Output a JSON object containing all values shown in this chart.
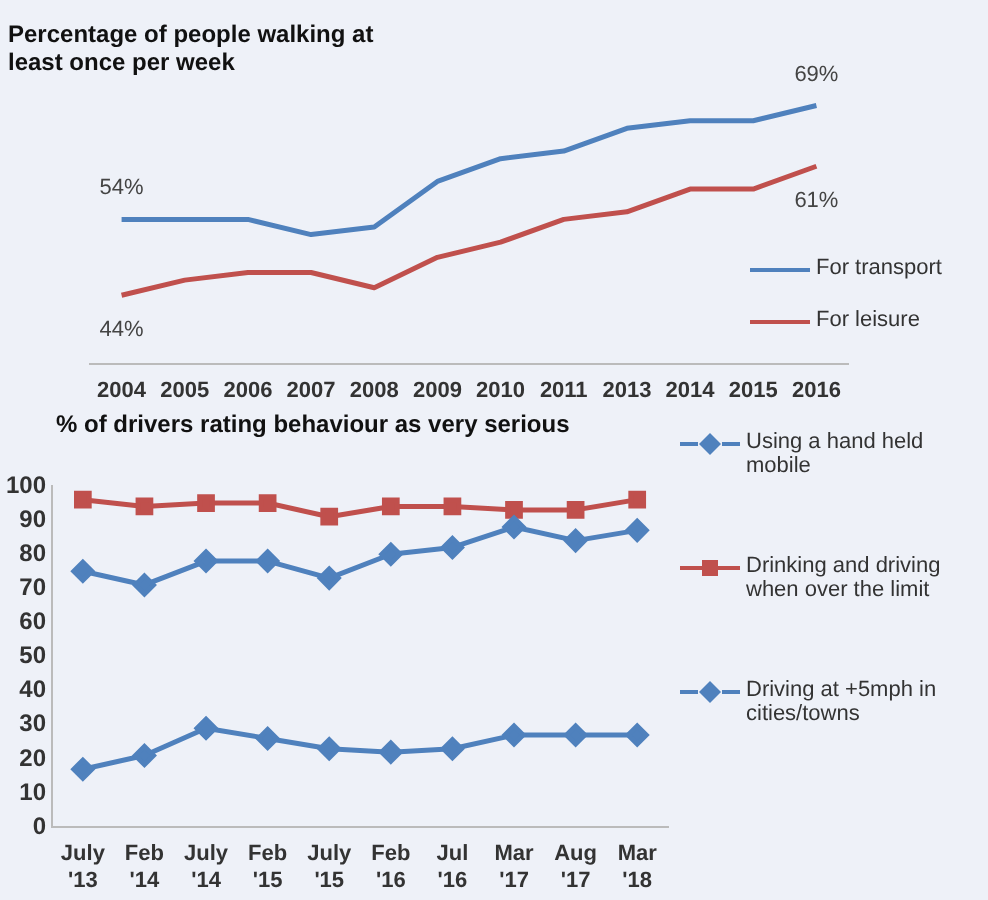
{
  "chart_data": [
    {
      "type": "line",
      "title": "Percentage of people walking at least once per week",
      "categories": [
        "2004",
        "2005",
        "2006",
        "2007",
        "2008",
        "2009",
        "2010",
        "2011",
        "2013",
        "2014",
        "2015",
        "2016"
      ],
      "series": [
        {
          "name": "For transport",
          "color": "#4f81bd",
          "values": [
            54,
            54,
            54,
            52,
            53,
            59,
            62,
            63,
            66,
            67,
            67,
            69
          ],
          "value_labels": [
            "54%",
            null,
            null,
            null,
            null,
            null,
            null,
            null,
            null,
            null,
            null,
            "69%"
          ]
        },
        {
          "name": "For leisure",
          "color": "#c0504d",
          "values": [
            44,
            46,
            47,
            47,
            45,
            49,
            51,
            54,
            55,
            58,
            58,
            61
          ],
          "value_labels": [
            "44%",
            null,
            null,
            null,
            null,
            null,
            null,
            null,
            null,
            null,
            null,
            "61%"
          ]
        }
      ],
      "tick_labels": "x",
      "grid": false,
      "legend": "right",
      "marker": "none"
    },
    {
      "type": "line",
      "title": "% of drivers rating behaviour as very serious",
      "categories": [
        "July\n'13",
        "Feb\n'14",
        "July\n'14",
        "Feb\n'15",
        "July\n'15",
        "Feb\n'16",
        "Jul\n'16",
        "Mar\n'17",
        "Aug\n'17",
        "Mar\n'18"
      ],
      "series": [
        {
          "name": "Using a hand held mobile",
          "color": "#4f81bd",
          "marker": "diamond",
          "values": [
            75,
            71,
            78,
            78,
            73,
            80,
            82,
            88,
            84,
            87
          ]
        },
        {
          "name": "Drinking and driving when over the limit",
          "color": "#c0504d",
          "marker": "square",
          "values": [
            96,
            94,
            95,
            95,
            91,
            94,
            94,
            93,
            93,
            96
          ]
        },
        {
          "name": "Driving at +5mph in cities/towns",
          "color": "#4f81bd",
          "marker": "diamond",
          "values": [
            17,
            21,
            29,
            26,
            23,
            22,
            23,
            27,
            27,
            27
          ]
        }
      ],
      "ylim": [
        0,
        100
      ],
      "yticks": [
        0,
        10,
        20,
        30,
        40,
        50,
        60,
        70,
        80,
        90,
        100
      ],
      "grid": false,
      "legend": "right"
    }
  ]
}
